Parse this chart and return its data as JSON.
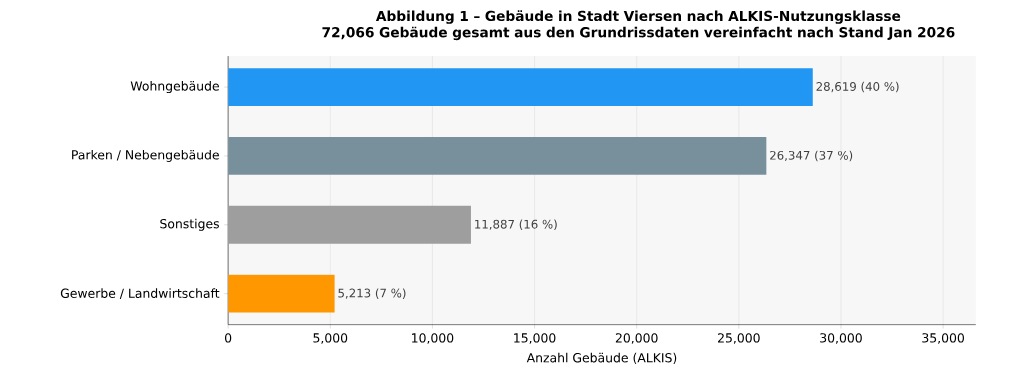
{
  "chart_data": {
    "type": "bar",
    "orientation": "horizontal",
    "title": "Abbildung 1 – Gebäude in Stadt Viersen nach ALKIS-Nutzungsklasse\n72,066 Gebäude gesamt aus den Grundrissdaten vereinfacht nach Stand Jan 2026",
    "xlabel": "Anzahl Gebäude (ALKIS)",
    "categories": [
      "Wohngebäude",
      "Parken / Nebengebäude",
      "Sonstiges",
      "Gewerbe / Landwirtschaft"
    ],
    "values": [
      28619,
      26347,
      11887,
      5213
    ],
    "colors": [
      "#2196f3",
      "#78909c",
      "#9e9e9e",
      "#ff9800"
    ],
    "value_labels": [
      "28,619  (40 %)",
      "26,347  (37 %)",
      "11,887  (16 %)",
      "5,213  (7 %)"
    ],
    "xlim": [
      0,
      36600
    ],
    "xticks": [
      0,
      {
        "value": 5000,
        "label": "5,000"
      },
      {
        "value": 10000,
        "label": "10,000"
      },
      {
        "value": 15000,
        "label": "15,000"
      },
      {
        "value": 20000,
        "label": "20,000"
      },
      {
        "value": 25000,
        "label": "25,000"
      },
      {
        "value": 30000,
        "label": "30,000"
      },
      {
        "value": 35000,
        "label": "35,000"
      }
    ],
    "grid": "x"
  }
}
